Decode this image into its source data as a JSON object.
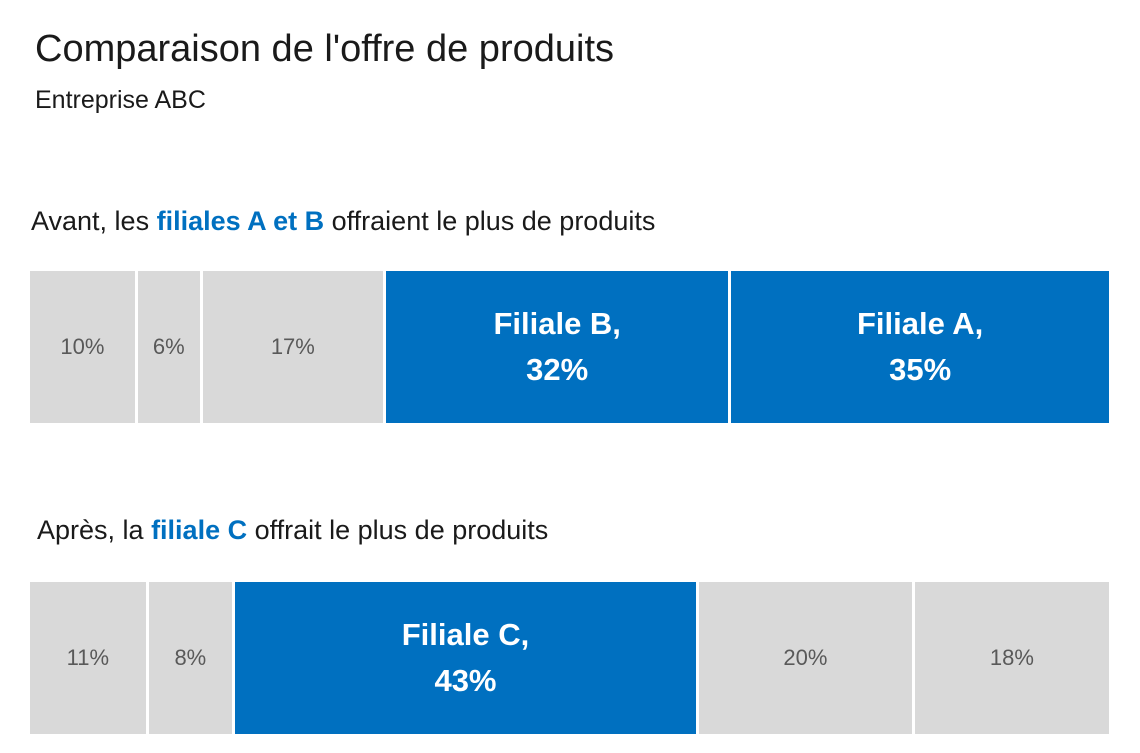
{
  "title": "Comparaison de l'offre de produits",
  "subtitle": "Entreprise ABC",
  "colors": {
    "highlight": "#0070C0",
    "muted": "#D9D9D9",
    "muted_text": "#595959",
    "highlight_text": "#FFFFFF"
  },
  "chart_data": [
    {
      "type": "bar",
      "orientation": "horizontal-stacked-100",
      "heading": {
        "prefix": "Avant, les ",
        "highlight": "filiales A et B",
        "suffix": " offraient le plus de produits"
      },
      "segments": [
        {
          "value": 10,
          "label": "10%",
          "name": "",
          "highlighted": false
        },
        {
          "value": 6,
          "label": "6%",
          "name": "",
          "highlighted": false
        },
        {
          "value": 17,
          "label": "17%",
          "name": "",
          "highlighted": false
        },
        {
          "value": 32,
          "label": "32%",
          "name": "Filiale B,",
          "highlighted": true
        },
        {
          "value": 35,
          "label": "35%",
          "name": "Filiale A,",
          "highlighted": true
        }
      ]
    },
    {
      "type": "bar",
      "orientation": "horizontal-stacked-100",
      "heading": {
        "prefix": "Après, la ",
        "highlight": "filiale C",
        "suffix": " offrait le plus de produits"
      },
      "segments": [
        {
          "value": 11,
          "label": "11%",
          "name": "",
          "highlighted": false
        },
        {
          "value": 8,
          "label": "8%",
          "name": "",
          "highlighted": false
        },
        {
          "value": 43,
          "label": "43%",
          "name": "Filiale C,",
          "highlighted": true
        },
        {
          "value": 20,
          "label": "20%",
          "name": "",
          "highlighted": false
        },
        {
          "value": 18,
          "label": "18%",
          "name": "",
          "highlighted": false
        }
      ]
    }
  ]
}
